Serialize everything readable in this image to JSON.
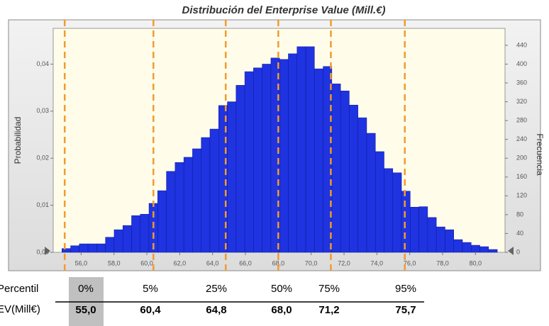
{
  "chart_data": {
    "type": "histogram",
    "title": "Distribución del Enterprise Value (Mill.€)",
    "ylabel": "Probabilidad",
    "y2label": "Frecuencia",
    "color": "#1f33e0",
    "bins": [
      54.83,
      55.36,
      55.89,
      56.42,
      56.95,
      57.48,
      58.01,
      58.54,
      59.07,
      59.6,
      60.13,
      60.66,
      61.19,
      61.72,
      62.25,
      62.78,
      63.31,
      63.84,
      64.37,
      64.9,
      65.43,
      65.96,
      66.49,
      67.02,
      67.55,
      68.08,
      68.61,
      69.14,
      69.67,
      70.2,
      70.73,
      71.26,
      71.79,
      72.32,
      72.85,
      73.38,
      73.91,
      74.44,
      74.97,
      75.5,
      76.03,
      76.56,
      77.09,
      77.62,
      78.15,
      78.68,
      79.21,
      79.74,
      80.27,
      80.8,
      81.33
    ],
    "values": [
      0.0008,
      0.0014,
      0.0018,
      0.0018,
      0.0018,
      0.0032,
      0.0048,
      0.0057,
      0.0078,
      0.0081,
      0.0104,
      0.0131,
      0.0172,
      0.0191,
      0.0202,
      0.022,
      0.0244,
      0.0262,
      0.0312,
      0.032,
      0.0355,
      0.0384,
      0.0392,
      0.04,
      0.0413,
      0.041,
      0.0422,
      0.0437,
      0.0437,
      0.039,
      0.0395,
      0.0358,
      0.0343,
      0.0313,
      0.0286,
      0.0253,
      0.0214,
      0.0178,
      0.0169,
      0.013,
      0.0096,
      0.0097,
      0.0074,
      0.0054,
      0.0048,
      0.0027,
      0.0021,
      0.0015,
      0.0012,
      0.0006
    ],
    "xlim": [
      54.3,
      81.8
    ],
    "xticks": [
      {
        "value": 56,
        "label": "56,0"
      },
      {
        "value": 58,
        "label": "58,0"
      },
      {
        "value": 60,
        "label": "60,0"
      },
      {
        "value": 62,
        "label": "62,0"
      },
      {
        "value": 64,
        "label": "64,0"
      },
      {
        "value": 66,
        "label": "66,0"
      },
      {
        "value": 68,
        "label": "68,0"
      },
      {
        "value": 70,
        "label": "70,0"
      },
      {
        "value": 72,
        "label": "72,0"
      },
      {
        "value": 74,
        "label": "74,0"
      },
      {
        "value": 76,
        "label": "76,0"
      },
      {
        "value": 78,
        "label": "78,0"
      },
      {
        "value": 80,
        "label": "80,0"
      }
    ],
    "ylim": [
      0,
      0.0476
    ],
    "yticks": [
      {
        "value": 0,
        "label": "0,00"
      },
      {
        "value": 0.01,
        "label": "0,01"
      },
      {
        "value": 0.02,
        "label": "0,02"
      },
      {
        "value": 0.03,
        "label": "0,03"
      },
      {
        "value": 0.04,
        "label": "0,04"
      }
    ],
    "y2lim": [
      0,
      476
    ],
    "y2ticks": [
      0,
      40,
      80,
      120,
      160,
      200,
      240,
      280,
      320,
      360,
      400,
      440
    ],
    "marker_color": "#f39a2e",
    "row_labels": [
      "Percentil",
      "EV(Mill€)"
    ],
    "percentiles": [
      {
        "name": "0%",
        "value": 55.0,
        "label": "55,0"
      },
      {
        "name": "5%",
        "value": 60.4,
        "label": "60,4"
      },
      {
        "name": "25%",
        "value": 64.8,
        "label": "64,8"
      },
      {
        "name": "50%",
        "value": 68.0,
        "label": "68,0"
      },
      {
        "name": "75%",
        "value": 71.2,
        "label": "71,2"
      },
      {
        "name": "95%",
        "value": 75.7,
        "label": "75,7"
      }
    ]
  }
}
